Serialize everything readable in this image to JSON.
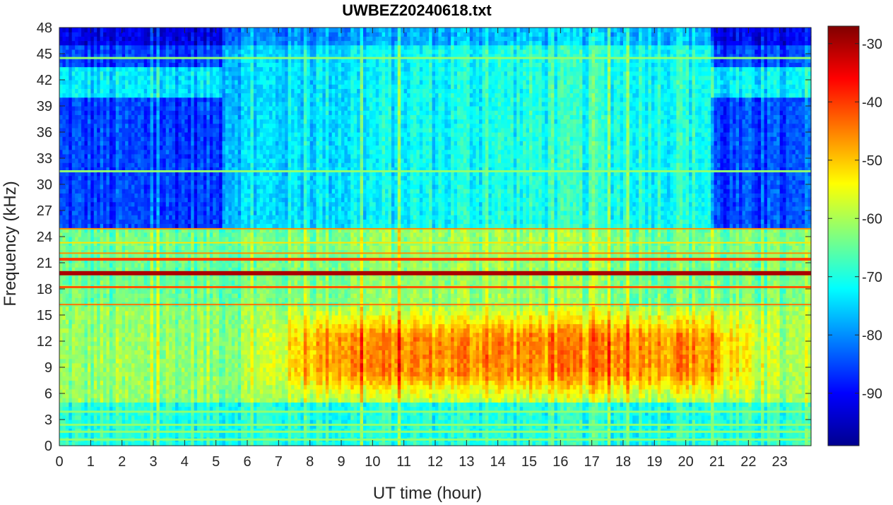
{
  "chart_data": {
    "type": "heatmap",
    "title": "UWBEZ20240618.txt",
    "xlabel": "UT time (hour)",
    "ylabel": "Frequency (kHz)",
    "xlim": [
      0,
      24
    ],
    "ylim": [
      0,
      48
    ],
    "x_ticks": [
      "0",
      "1",
      "2",
      "3",
      "4",
      "5",
      "6",
      "7",
      "8",
      "9",
      "10",
      "11",
      "12",
      "13",
      "14",
      "15",
      "16",
      "17",
      "18",
      "19",
      "20",
      "21",
      "22",
      "23"
    ],
    "y_ticks": [
      "0",
      "3",
      "6",
      "9",
      "12",
      "15",
      "18",
      "21",
      "24",
      "27",
      "30",
      "33",
      "36",
      "39",
      "42",
      "45",
      "48"
    ],
    "colorbar": {
      "colormap": "jet",
      "range": [
        -99,
        -27
      ],
      "ticks": [
        "-90",
        "-80",
        "-70",
        "-60",
        "-50",
        "-40",
        "-30"
      ]
    },
    "features": {
      "strong_lines_khz": [
        19.8,
        21.4,
        18.2,
        22.1,
        23.3,
        24.9,
        16.2
      ],
      "moderate_lines_khz": [
        44.5,
        31.5,
        3.9,
        2.4,
        1.6,
        0.7
      ],
      "broadband_max_khz": [
        9,
        12
      ],
      "broadband_max_hours": [
        9,
        20
      ],
      "quiet_upper_band_hours": [
        [
          0,
          5.2
        ],
        [
          20.8,
          24
        ]
      ]
    }
  }
}
